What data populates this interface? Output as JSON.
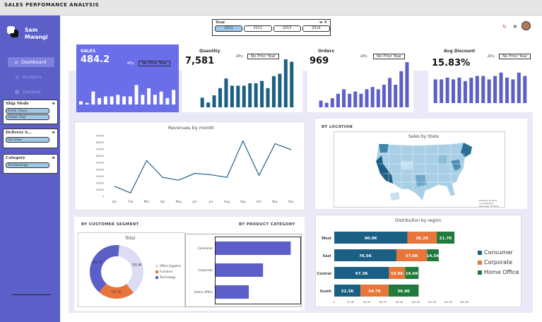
{
  "app": {
    "title": "SALES PERFOMANCE ANALYSIS"
  },
  "user": {
    "name": "Sam Mwangi"
  },
  "nav": [
    {
      "label": "Dashboard"
    },
    {
      "label": "Analysis"
    },
    {
      "label": "Dataset"
    }
  ],
  "slicers": {
    "ship_mode": {
      "title": "Ship Mode",
      "items": [
        "First Class",
        "Same Day"
      ]
    },
    "delivery": {
      "title": "Delivery S...",
      "items": [
        "On-time"
      ]
    },
    "category": {
      "title": "Category",
      "items": [
        "Technology"
      ]
    },
    "year": {
      "title": "Year",
      "items": [
        "2011",
        "2012",
        "2013",
        "2014"
      ]
    }
  },
  "kpis": {
    "sales": {
      "title": "SALES",
      "value": "484.2",
      "py_label": "ΔPy:",
      "py": "No Prior Year",
      "bars": [
        0.1,
        0.05,
        0.4,
        0.2,
        0.25,
        0.25,
        0.3,
        0.25,
        0.25,
        0.6,
        0.3,
        0.5,
        0.3,
        0.4,
        0.2,
        0.45
      ]
    },
    "quantity": {
      "title": "Quantity",
      "value": "7,581",
      "py_label": "ΔPy:",
      "py": "No Prior Year",
      "bars": [
        0.2,
        0.1,
        0.25,
        0.4,
        0.6,
        0.45,
        0.45,
        0.45,
        0.5,
        0.5,
        0.55,
        0.4,
        0.65,
        0.7,
        1.0,
        0.95
      ]
    },
    "orders": {
      "title": "Orders",
      "value": "969",
      "py_label": "ΔPy:",
      "py": "No Prior Year",
      "bars": [
        0.15,
        0.1,
        0.2,
        0.3,
        0.4,
        0.3,
        0.35,
        0.3,
        0.4,
        0.45,
        0.4,
        0.5,
        0.65,
        0.5,
        0.8,
        1.0
      ]
    },
    "avg_discount": {
      "title": "Avg Discount",
      "value": "15.83%",
      "py_label": "ΔPy:",
      "py": "No Prior Year",
      "bars": [
        0.7,
        0.7,
        0.75,
        0.7,
        0.75,
        0.65,
        0.75,
        0.8,
        0.8,
        0.7,
        0.8,
        0.9,
        0.75,
        0.7,
        0.9,
        0.8
      ]
    }
  },
  "revenue_chart": {
    "title": "Revenues by month",
    "yticks": [
      "0",
      "10000",
      "20000",
      "30000",
      "40000",
      "50000",
      "60000",
      "70000",
      "80000",
      "90000"
    ],
    "months": [
      "Jan",
      "Feb",
      "Mar",
      "Apr",
      "May",
      "Jun",
      "Jul",
      "Aug",
      "Sep",
      "Oct",
      "Nov",
      "Dec"
    ]
  },
  "chart_data": [
    {
      "type": "line",
      "title": "Revenues by month",
      "categories": [
        "Jan",
        "Feb",
        "Mar",
        "Apr",
        "May",
        "Jun",
        "Jul",
        "Aug",
        "Sep",
        "Oct",
        "Nov",
        "Dec"
      ],
      "values": [
        15000,
        5000,
        53000,
        28000,
        24000,
        34000,
        32000,
        28000,
        82000,
        31000,
        78000,
        69000
      ],
      "ylim": [
        0,
        90000
      ]
    },
    {
      "type": "pie",
      "title": "Total",
      "series": [
        {
          "name": "Office Supplies",
          "value": 181800
        },
        {
          "name": "Furniture",
          "value": 107700
        },
        {
          "name": "Technology",
          "value": 194700
        }
      ]
    },
    {
      "type": "bar",
      "categories": [
        "Consumer",
        "Corporate",
        "Home Office"
      ],
      "values": [
        0.95,
        0.6,
        0.42
      ]
    },
    {
      "type": "bar",
      "title": "Distribution by region",
      "categories": [
        "West",
        "East",
        "Central",
        "South"
      ],
      "series": [
        {
          "name": "Consumer",
          "values": [
            90000,
            76500,
            67300,
            32300
          ],
          "labels": [
            "90.0K",
            "76.5K",
            "67.3K",
            "32.3K"
          ]
        },
        {
          "name": "Corporate",
          "values": [
            36200,
            37600,
            19900,
            34700
          ],
          "labels": [
            "36.2K",
            "37.6K",
            "19.9K",
            "34.7K"
          ]
        },
        {
          "name": "Home Office",
          "values": [
            21700,
            14500,
            16600,
            36900
          ],
          "labels": [
            "21.7K",
            "14.5K",
            "16.6K",
            "36.9K"
          ]
        }
      ],
      "xlim": [
        0,
        160000
      ]
    }
  ],
  "segment": {
    "section": "BY CUSTOMER SEGMENT",
    "donut_title": "Total",
    "legend": [
      "Office Supplies",
      "Furniture",
      "Technology"
    ],
    "labels": [
      "181.8K",
      "107.7K",
      "194.7K"
    ]
  },
  "product": {
    "section": "BY PRODUCT CATEGORY",
    "categories": [
      "Consumer",
      "Corporate",
      "Home Office"
    ]
  },
  "location": {
    "section": "BY LOCATION",
    "map_title": "Sales by State",
    "attribution": "Powered by Bing\n© GeoNames, Microsoft, TomTom"
  },
  "region": {
    "title": "Distribution by region",
    "xticks": [
      "0",
      "20.0K",
      "40.0K",
      "60.0K",
      "80.0K",
      "100.0K",
      "120.0K",
      "140.0K",
      "160.0K"
    ],
    "legend": [
      "Consumer",
      "Corporate",
      "Home Office"
    ]
  },
  "colors": {
    "consumer": "#1c5f85",
    "corporate": "#e8763a",
    "home_office": "#1f7a3c",
    "accent": "#5b5fc7",
    "bar": "#5b5fc7",
    "bar_dark": "#1c5f85"
  }
}
